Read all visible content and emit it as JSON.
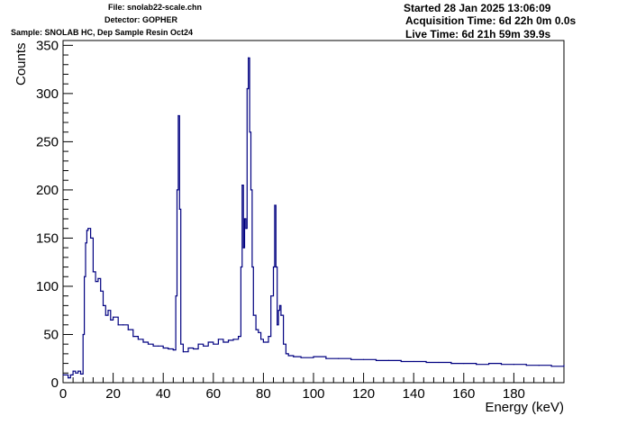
{
  "header": {
    "file": "File: snolab22-scale.chn",
    "detector": "Detector: GOPHER",
    "sample": "Sample: SNOLAB HC, Dep Sample Resin Oct24",
    "started": "Started 28 Jan 2025 13:06:09",
    "acquisition_time": "Acquisition Time: 6d 22h 0m 0.0s",
    "live_time": "Live Time: 6d 21h 59m 39.9s"
  },
  "colors": {
    "line": "#000080",
    "axis": "#000000",
    "background": "#ffffff"
  },
  "chart_data": {
    "type": "line",
    "title": "",
    "xlabel": "Energy (keV)",
    "ylabel": "Counts",
    "xlim": [
      0,
      200
    ],
    "ylim": [
      0,
      355
    ],
    "x_ticks": [
      0,
      20,
      40,
      60,
      80,
      100,
      120,
      140,
      160,
      180
    ],
    "y_ticks": [
      0,
      50,
      100,
      150,
      200,
      250,
      300,
      350
    ],
    "grid": false,
    "legend": "none",
    "series": [
      {
        "x": [
          0,
          2,
          3,
          4,
          5,
          6,
          7,
          8,
          8.5,
          9,
          9.5,
          10,
          11,
          12,
          13,
          14,
          15,
          16,
          17,
          18,
          19,
          20,
          22,
          24,
          26,
          28,
          30,
          32,
          34,
          36,
          38,
          40,
          42,
          44,
          45,
          45.5,
          46,
          46.5,
          47,
          48,
          50,
          52,
          54,
          56,
          58,
          60,
          62,
          64,
          66,
          68,
          70,
          71,
          71.5,
          72,
          72.5,
          73,
          73.5,
          74,
          74.5,
          75,
          75.5,
          76,
          77,
          78,
          79,
          80,
          82,
          83,
          84,
          84.5,
          85,
          85.5,
          86,
          86.5,
          87,
          88,
          89,
          90,
          92,
          95,
          100,
          105,
          110,
          115,
          120,
          125,
          130,
          135,
          140,
          145,
          150,
          155,
          160,
          165,
          170,
          175,
          180,
          185,
          190,
          195,
          200
        ],
        "y": [
          8,
          5,
          8,
          12,
          10,
          12,
          9,
          50,
          110,
          145,
          158,
          160,
          150,
          115,
          105,
          108,
          95,
          80,
          70,
          75,
          65,
          68,
          60,
          60,
          55,
          48,
          45,
          42,
          40,
          38,
          38,
          36,
          35,
          34,
          90,
          200,
          277,
          180,
          40,
          32,
          36,
          35,
          40,
          38,
          42,
          40,
          45,
          42,
          44,
          45,
          48,
          120,
          205,
          140,
          170,
          160,
          305,
          337,
          260,
          200,
          120,
          70,
          55,
          52,
          45,
          42,
          48,
          90,
          120,
          184,
          120,
          60,
          75,
          80,
          70,
          40,
          30,
          28,
          27,
          26,
          27,
          25,
          25,
          24,
          24,
          23,
          23,
          22,
          22,
          21,
          21,
          20,
          20,
          19,
          20,
          19,
          19,
          18,
          18,
          17,
          18
        ]
      }
    ]
  }
}
